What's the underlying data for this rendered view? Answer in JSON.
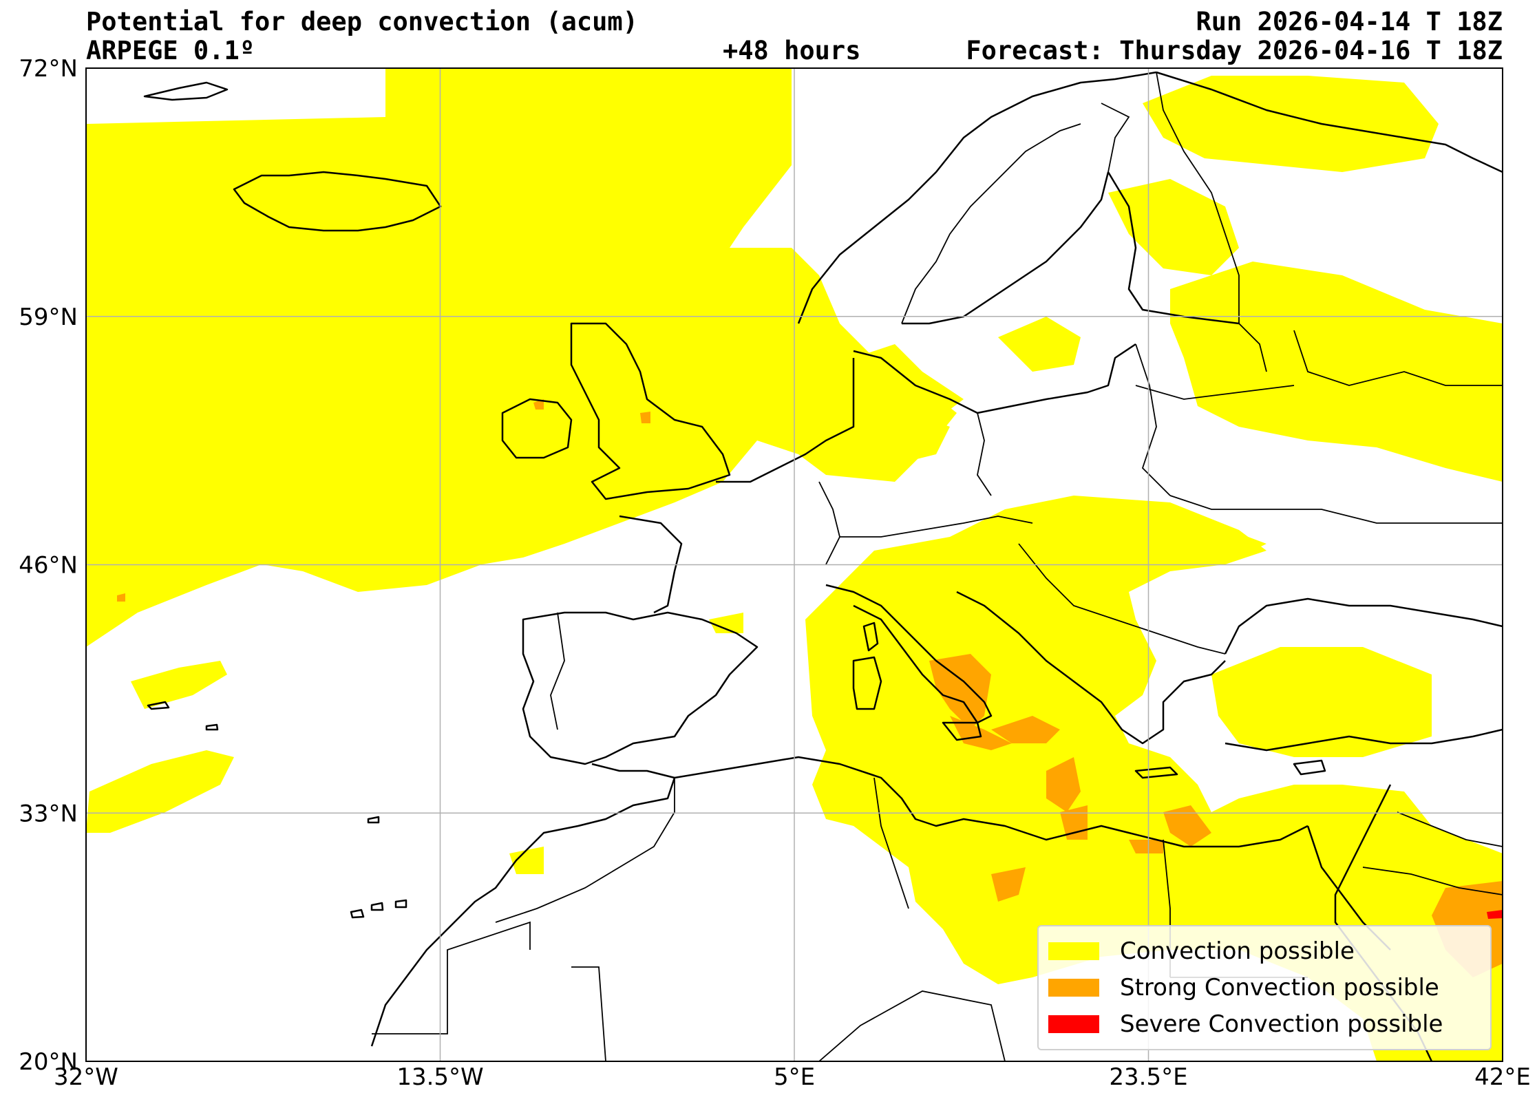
{
  "header": {
    "title": "Potential for deep convection (acum)",
    "model": "ARPEGE 0.1º",
    "run": "Run 2026-04-14 T 18Z",
    "lead": "+48 hours",
    "forecast": "Forecast: Thursday 2026-04-16 T 18Z"
  },
  "map": {
    "lon_range": [
      -32,
      42
    ],
    "lat_range": [
      20,
      72
    ],
    "lon_ticks": [
      {
        "value": -32,
        "label": "32°W"
      },
      {
        "value": -13.5,
        "label": "13.5°W"
      },
      {
        "value": 5,
        "label": "5°E"
      },
      {
        "value": 23.5,
        "label": "23.5°E"
      },
      {
        "value": 42,
        "label": "42°E"
      }
    ],
    "lat_ticks": [
      {
        "value": 72,
        "label": "72°N"
      },
      {
        "value": 59,
        "label": "59°N"
      },
      {
        "value": 46,
        "label": "46°N"
      },
      {
        "value": 33,
        "label": "33°N"
      },
      {
        "value": 20,
        "label": "20°N"
      }
    ],
    "grid": true
  },
  "legend": {
    "items": [
      {
        "label": "Convection possible",
        "color": "#ffff00"
      },
      {
        "label": "Strong Convection possible",
        "color": "#ffa500"
      },
      {
        "label": "Severe Convection possible",
        "color": "#ff0000"
      }
    ]
  },
  "colors": {
    "convection": "#ffff00",
    "strong": "#ffa500",
    "severe": "#ff0000",
    "coast": "#000000",
    "grid": "#b0b0b0"
  }
}
